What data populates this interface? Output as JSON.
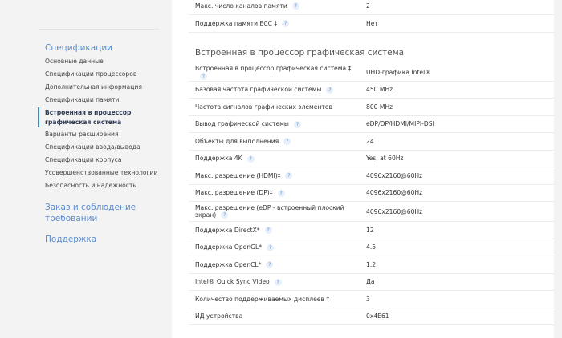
{
  "sidebar": {
    "title": "Спецификации",
    "items": [
      "Основные данные",
      "Спецификации процессоров",
      "Дополнительная информация",
      "Спецификации памяти",
      "Встроенная в процессор графическая система",
      "Варианты расширения",
      "Спецификации ввода/вывода",
      "Спецификации корпуса",
      "Усовершенствованные технологии",
      "Безопасность и надежность"
    ],
    "active_index": 4,
    "order": "Заказ и соблюдение требований",
    "support": "Поддержка"
  },
  "memory_rows": [
    {
      "label": "Макс. число каналов памяти",
      "value": "2",
      "help": true
    },
    {
      "label": "Поддержка памяти ECC ‡",
      "value": "Нет",
      "help": true
    }
  ],
  "section_title": "Встроенная в процессор графическая система",
  "graphics_rows": [
    {
      "label": "Встроенная в процессор графическая система ‡",
      "value": "UHD-графика Intel®",
      "help": true
    },
    {
      "label": "Базовая частота графической системы",
      "value": "450 MHz",
      "help": true
    },
    {
      "label": "Частота сигналов графических элементов",
      "value": "800 MHz",
      "help": false
    },
    {
      "label": "Вывод графической системы",
      "value": "eDP/DP/HDMI/MIPI-DSI",
      "help": true
    },
    {
      "label": "Объекты для выполнения",
      "value": "24",
      "help": true
    },
    {
      "label": "Поддержка 4K",
      "value": "Yes, at 60Hz",
      "help": true
    },
    {
      "label": "Макс. разрешение (HDMI)‡",
      "value": "4096x2160@60Hz",
      "help": true
    },
    {
      "label": "Макс. разрешение (DP)‡",
      "value": "4096x2160@60Hz",
      "help": true
    },
    {
      "label": "Макс. разрешение (eDP - встроенный плоский экран)",
      "value": "4096x2160@60Hz",
      "help": true
    },
    {
      "label": "Поддержка DirectX*",
      "value": "12",
      "help": true
    },
    {
      "label": "Поддержка OpenGL*",
      "value": "4.5",
      "help": true
    },
    {
      "label": "Поддержка OpenCL*",
      "value": "1.2",
      "help": true
    },
    {
      "label": "Intel® Quick Sync Video",
      "value": "Да",
      "help": true
    },
    {
      "label": "Количество поддерживаемых дисплеев ‡",
      "value": "3",
      "help": false
    },
    {
      "label": "ИД устройства",
      "value": "0x4E61",
      "help": false
    }
  ],
  "help_glyph": "?"
}
